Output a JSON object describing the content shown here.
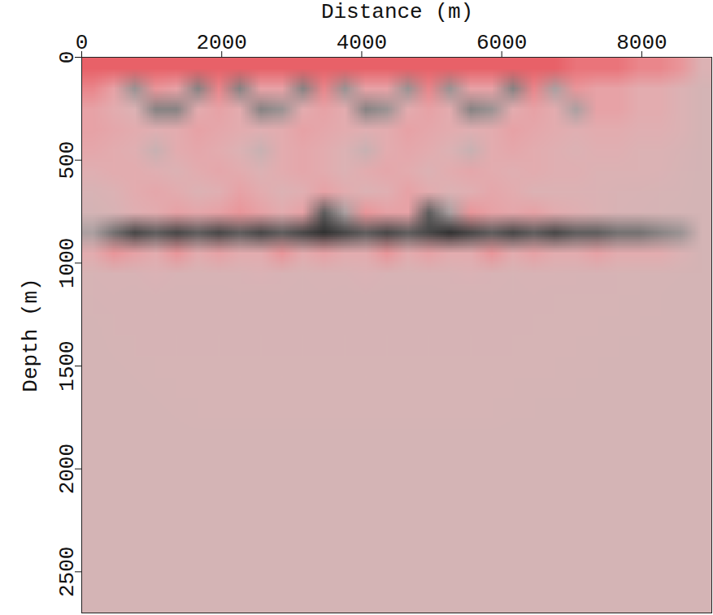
{
  "chart_data": {
    "type": "heatmap",
    "x_label": "Distance (m)",
    "y_label": "Depth (m)",
    "xlim": [
      0,
      9000
    ],
    "ylim": [
      0,
      2700
    ],
    "xticks": [
      0,
      2000,
      4000,
      6000,
      8000
    ],
    "yticks": [
      0,
      500,
      1000,
      1500,
      2000,
      2500
    ],
    "value_range": [
      -1,
      1
    ],
    "colors": [
      "#1a1a1a",
      "#ffffff",
      "#e0202a"
    ],
    "cells": [
      [
        0.7,
        0.7,
        0.7,
        0.7,
        0.7,
        0.7,
        0.7,
        0.7,
        0.7,
        0.7,
        0.7,
        0.7,
        0.7,
        0.7,
        0.7,
        0.7,
        0.7,
        0.7,
        0.7,
        0.7,
        0.7,
        0.7,
        0.7,
        0.6,
        0.6,
        0.6,
        0.5,
        0.5,
        0.4,
        0.1
      ],
      [
        0.5,
        0.3,
        -0.4,
        0.4,
        0.3,
        -0.5,
        0.5,
        -0.5,
        0.3,
        0.3,
        -0.5,
        0.5,
        -0.4,
        0.3,
        0.3,
        -0.4,
        0.5,
        -0.4,
        0.3,
        0.3,
        -0.5,
        0.5,
        -0.3,
        0.4,
        0.3,
        0.3,
        0.2,
        0.2,
        0.1,
        0.0
      ],
      [
        0.3,
        0.2,
        0.1,
        -0.5,
        -0.5,
        0.2,
        0.3,
        0.2,
        -0.5,
        -0.4,
        0.2,
        0.3,
        0.2,
        -0.5,
        -0.4,
        0.2,
        0.3,
        0.2,
        -0.5,
        -0.4,
        0.2,
        0.3,
        0.2,
        -0.3,
        0.3,
        0.3,
        0.2,
        0.2,
        0.1,
        0.0
      ],
      [
        0.3,
        0.25,
        0.2,
        0.15,
        0.2,
        0.3,
        0.25,
        0.2,
        0.15,
        0.2,
        0.3,
        0.25,
        0.2,
        0.15,
        0.2,
        0.3,
        0.25,
        0.2,
        0.15,
        0.2,
        0.3,
        0.25,
        0.2,
        0.15,
        0.2,
        0.2,
        0.15,
        0.15,
        0.1,
        0.0
      ],
      [
        0.25,
        0.2,
        0.15,
        -0.1,
        0.2,
        0.25,
        0.2,
        0.1,
        -0.1,
        0.2,
        0.25,
        0.2,
        0.1,
        -0.1,
        0.2,
        0.25,
        0.2,
        0.1,
        -0.1,
        0.2,
        0.25,
        0.2,
        0.15,
        0.1,
        0.15,
        0.15,
        0.1,
        0.1,
        0.05,
        0.0
      ],
      [
        0.15,
        0.2,
        0.2,
        0.15,
        0.1,
        0.2,
        0.25,
        0.2,
        0.1,
        0.2,
        0.25,
        0.2,
        0.1,
        0.2,
        0.25,
        0.2,
        0.1,
        0.2,
        0.25,
        0.2,
        0.15,
        0.2,
        0.15,
        0.15,
        0.1,
        0.1,
        0.1,
        0.08,
        0.03,
        0.0
      ],
      [
        0.05,
        0.1,
        0.2,
        0.25,
        0.2,
        0.1,
        0.15,
        0.3,
        0.2,
        0.1,
        0.15,
        0.3,
        0.2,
        0.1,
        0.15,
        0.3,
        0.2,
        0.1,
        0.15,
        0.25,
        0.2,
        0.1,
        0.1,
        0.1,
        0.08,
        0.06,
        0.05,
        0.03,
        0.02,
        0.0
      ],
      [
        0.0,
        0.05,
        0.15,
        0.2,
        0.3,
        0.25,
        0.3,
        0.4,
        0.3,
        0.2,
        0.3,
        -0.7,
        -0.3,
        0.4,
        0.3,
        0.3,
        -0.7,
        -0.3,
        0.4,
        0.3,
        0.25,
        0.3,
        0.2,
        0.15,
        0.1,
        0.05,
        0.03,
        0.02,
        0.01,
        0.0
      ],
      [
        -0.3,
        -0.6,
        -0.8,
        -0.7,
        -0.8,
        -0.7,
        -0.8,
        -0.7,
        -0.8,
        -0.7,
        -0.8,
        -0.9,
        -0.8,
        -0.7,
        -0.8,
        -0.7,
        -0.8,
        -0.9,
        -0.8,
        -0.7,
        -0.8,
        -0.7,
        -0.8,
        -0.7,
        -0.7,
        -0.6,
        -0.6,
        -0.5,
        -0.4,
        0.0
      ],
      [
        0.2,
        0.4,
        0.3,
        0.2,
        0.4,
        0.2,
        0.3,
        0.2,
        0.2,
        0.4,
        0.2,
        0.3,
        0.2,
        0.2,
        0.4,
        0.2,
        0.3,
        0.2,
        0.2,
        0.4,
        0.2,
        0.3,
        0.2,
        0.2,
        0.3,
        0.2,
        0.2,
        0.2,
        0.1,
        0.0
      ],
      [
        0.03,
        0.05,
        0.05,
        0.08,
        0.05,
        0.03,
        0.05,
        0.05,
        0.08,
        0.05,
        0.03,
        0.05,
        0.05,
        0.08,
        0.05,
        0.03,
        0.05,
        0.05,
        0.08,
        0.05,
        0.03,
        0.05,
        0.05,
        0.04,
        0.04,
        0.03,
        0.02,
        0.02,
        0.01,
        0.0
      ],
      [
        0.02,
        0.04,
        0.02,
        0.04,
        0.02,
        0.04,
        0.02,
        0.04,
        0.02,
        0.04,
        0.02,
        0.04,
        0.02,
        0.04,
        0.02,
        0.04,
        0.02,
        0.04,
        0.02,
        0.04,
        0.02,
        0.04,
        0.02,
        0.03,
        0.02,
        0.02,
        0.02,
        0.01,
        0.0,
        0.0
      ],
      [
        0.01,
        0.02,
        0.04,
        0.02,
        0.04,
        0.02,
        0.04,
        0.02,
        0.04,
        0.02,
        0.04,
        0.02,
        0.04,
        0.02,
        0.04,
        0.02,
        0.04,
        0.02,
        0.04,
        0.02,
        0.04,
        0.02,
        0.03,
        0.02,
        0.02,
        0.02,
        0.01,
        0.01,
        0.0,
        0.0
      ],
      [
        0.0,
        0.02,
        0.02,
        0.04,
        0.02,
        0.04,
        0.02,
        0.04,
        0.02,
        0.04,
        0.02,
        0.04,
        0.02,
        0.04,
        0.02,
        0.04,
        0.02,
        0.04,
        0.02,
        0.04,
        0.02,
        0.03,
        0.02,
        0.02,
        0.02,
        0.01,
        0.01,
        0.0,
        0.0,
        0.0
      ],
      [
        0.0,
        0.01,
        0.02,
        0.02,
        0.03,
        0.02,
        0.03,
        0.02,
        0.03,
        0.02,
        0.03,
        0.02,
        0.03,
        0.02,
        0.03,
        0.02,
        0.03,
        0.02,
        0.03,
        0.02,
        0.03,
        0.02,
        0.02,
        0.02,
        0.01,
        0.01,
        0.0,
        0.0,
        0.0,
        0.0
      ],
      [
        0.0,
        0.0,
        0.01,
        0.02,
        0.02,
        0.03,
        0.02,
        0.03,
        0.02,
        0.03,
        0.02,
        0.03,
        0.02,
        0.03,
        0.02,
        0.03,
        0.02,
        0.03,
        0.02,
        0.03,
        0.02,
        0.02,
        0.02,
        0.01,
        0.01,
        0.0,
        0.0,
        0.0,
        0.0,
        0.0
      ],
      [
        0.0,
        0.0,
        0.0,
        0.01,
        0.02,
        0.02,
        0.02,
        0.02,
        0.02,
        0.02,
        0.02,
        0.02,
        0.02,
        0.02,
        0.02,
        0.02,
        0.02,
        0.02,
        0.02,
        0.02,
        0.02,
        0.01,
        0.01,
        0.01,
        0.0,
        0.0,
        0.0,
        0.0,
        0.0,
        0.0
      ],
      [
        0.0,
        0.0,
        0.0,
        0.0,
        0.01,
        0.02,
        0.02,
        0.02,
        0.02,
        0.02,
        0.02,
        0.02,
        0.02,
        0.02,
        0.02,
        0.02,
        0.02,
        0.02,
        0.02,
        0.02,
        0.01,
        0.01,
        0.0,
        0.0,
        0.0,
        0.0,
        0.0,
        0.0,
        0.0,
        0.0
      ],
      [
        0.0,
        0.0,
        0.0,
        0.0,
        0.0,
        0.0,
        0.0,
        0.0,
        0.0,
        0.0,
        0.0,
        0.0,
        0.0,
        0.0,
        0.0,
        0.0,
        0.0,
        0.0,
        0.0,
        0.0,
        0.0,
        0.0,
        0.0,
        0.0,
        0.0,
        0.0,
        0.0,
        0.0,
        0.0,
        0.0
      ],
      [
        0.0,
        0.0,
        0.0,
        0.0,
        0.0,
        0.0,
        0.0,
        0.0,
        0.0,
        0.0,
        0.0,
        0.0,
        0.0,
        0.0,
        0.0,
        0.0,
        0.0,
        0.0,
        0.0,
        0.0,
        0.0,
        0.0,
        0.0,
        0.0,
        0.0,
        0.0,
        0.0,
        0.0,
        0.0,
        0.0
      ],
      [
        0.0,
        0.0,
        0.0,
        0.0,
        0.0,
        0.0,
        0.0,
        0.0,
        0.0,
        0.0,
        0.0,
        0.0,
        0.0,
        0.0,
        0.0,
        0.0,
        0.0,
        0.0,
        0.0,
        0.0,
        0.0,
        0.0,
        0.0,
        0.0,
        0.0,
        0.0,
        0.0,
        0.0,
        0.0,
        0.0
      ],
      [
        0.0,
        0.0,
        0.0,
        0.0,
        0.0,
        0.0,
        0.0,
        0.0,
        0.0,
        0.0,
        0.0,
        0.0,
        0.0,
        0.0,
        0.0,
        0.0,
        0.0,
        0.0,
        0.0,
        0.0,
        0.0,
        0.0,
        0.0,
        0.0,
        0.0,
        0.0,
        0.0,
        0.0,
        0.0,
        0.0
      ],
      [
        0.0,
        0.0,
        0.0,
        0.0,
        0.0,
        0.0,
        0.0,
        0.0,
        0.0,
        0.0,
        0.0,
        0.0,
        0.0,
        0.0,
        0.0,
        0.0,
        0.0,
        0.0,
        0.0,
        0.0,
        0.0,
        0.0,
        0.0,
        0.0,
        0.0,
        0.0,
        0.0,
        0.0,
        0.0,
        0.0
      ],
      [
        0.0,
        0.0,
        0.0,
        0.0,
        0.0,
        0.0,
        0.0,
        0.0,
        0.0,
        0.0,
        0.0,
        0.0,
        0.0,
        0.0,
        0.0,
        0.0,
        0.0,
        0.0,
        0.0,
        0.0,
        0.0,
        0.0,
        0.0,
        0.0,
        0.0,
        0.0,
        0.0,
        0.0,
        0.0,
        0.0
      ],
      [
        0.0,
        0.0,
        0.0,
        0.0,
        0.0,
        0.0,
        0.0,
        0.0,
        0.0,
        0.0,
        0.0,
        0.0,
        0.0,
        0.0,
        0.0,
        0.0,
        0.0,
        0.0,
        0.0,
        0.0,
        0.0,
        0.0,
        0.0,
        0.0,
        0.0,
        0.0,
        0.0,
        0.0,
        0.0,
        0.0
      ],
      [
        0.0,
        0.0,
        0.0,
        0.0,
        0.0,
        0.0,
        0.0,
        0.0,
        0.0,
        0.0,
        0.0,
        0.0,
        0.0,
        0.0,
        0.0,
        0.0,
        0.0,
        0.0,
        0.0,
        0.0,
        0.0,
        0.0,
        0.0,
        0.0,
        0.0,
        0.0,
        0.0,
        0.0,
        0.0,
        0.0
      ],
      [
        0.0,
        0.0,
        0.0,
        0.0,
        0.0,
        0.0,
        0.0,
        0.0,
        0.0,
        0.0,
        0.0,
        0.0,
        0.0,
        0.0,
        0.0,
        0.0,
        0.0,
        0.0,
        0.0,
        0.0,
        0.0,
        0.0,
        0.0,
        0.0,
        0.0,
        0.0,
        0.0,
        0.0,
        0.0,
        0.0
      ]
    ]
  }
}
